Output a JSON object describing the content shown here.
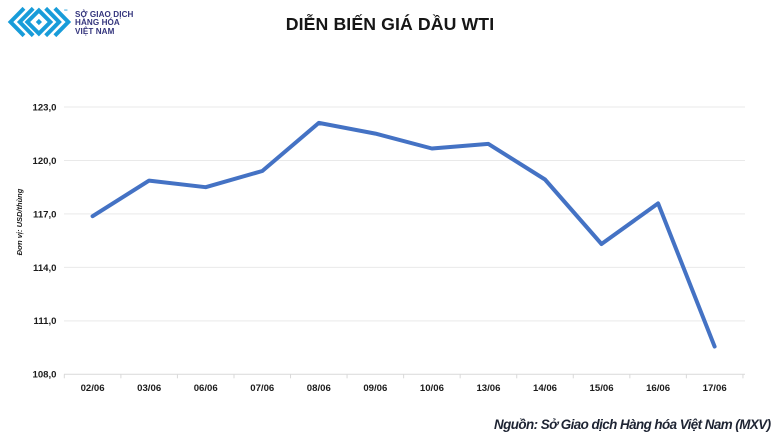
{
  "logo": {
    "organization_lines": [
      "SỞ GIAO DỊCH",
      "HÀNG HÓA",
      "VIỆT NAM"
    ],
    "icon_color": "#189cd9",
    "text_color": "#34357d"
  },
  "title": "DIỄN BIẾN GIÁ DẦU WTI",
  "source_note": "Nguồn: Sở Giao dịch Hàng hóa Việt Nam (MXV)",
  "chart_data": {
    "type": "line",
    "title": "DIỄN BIẾN GIÁ DẦU WTI",
    "xlabel": "",
    "ylabel": "Đơn vị: USD/thùng",
    "categories": [
      "02/06",
      "03/06",
      "06/06",
      "07/06",
      "08/06",
      "09/06",
      "10/06",
      "13/06",
      "14/06",
      "15/06",
      "16/06",
      "17/06"
    ],
    "series": [
      {
        "name": "Giá dầu WTI",
        "values": [
          116.87,
          118.87,
          118.5,
          119.41,
          122.11,
          121.51,
          120.67,
          120.93,
          118.93,
          115.31,
          117.59,
          109.56
        ]
      }
    ],
    "ylim": [
      108,
      123
    ],
    "ytick_step": 3,
    "ytick_labels": [
      "108,0",
      "111,0",
      "114,0",
      "117,0",
      "120,0",
      "123,0"
    ],
    "grid": true,
    "legend": false,
    "line_color": "#4472c4",
    "grid_color": "#e9e9e9",
    "axis_color": "#d9d9d9"
  }
}
